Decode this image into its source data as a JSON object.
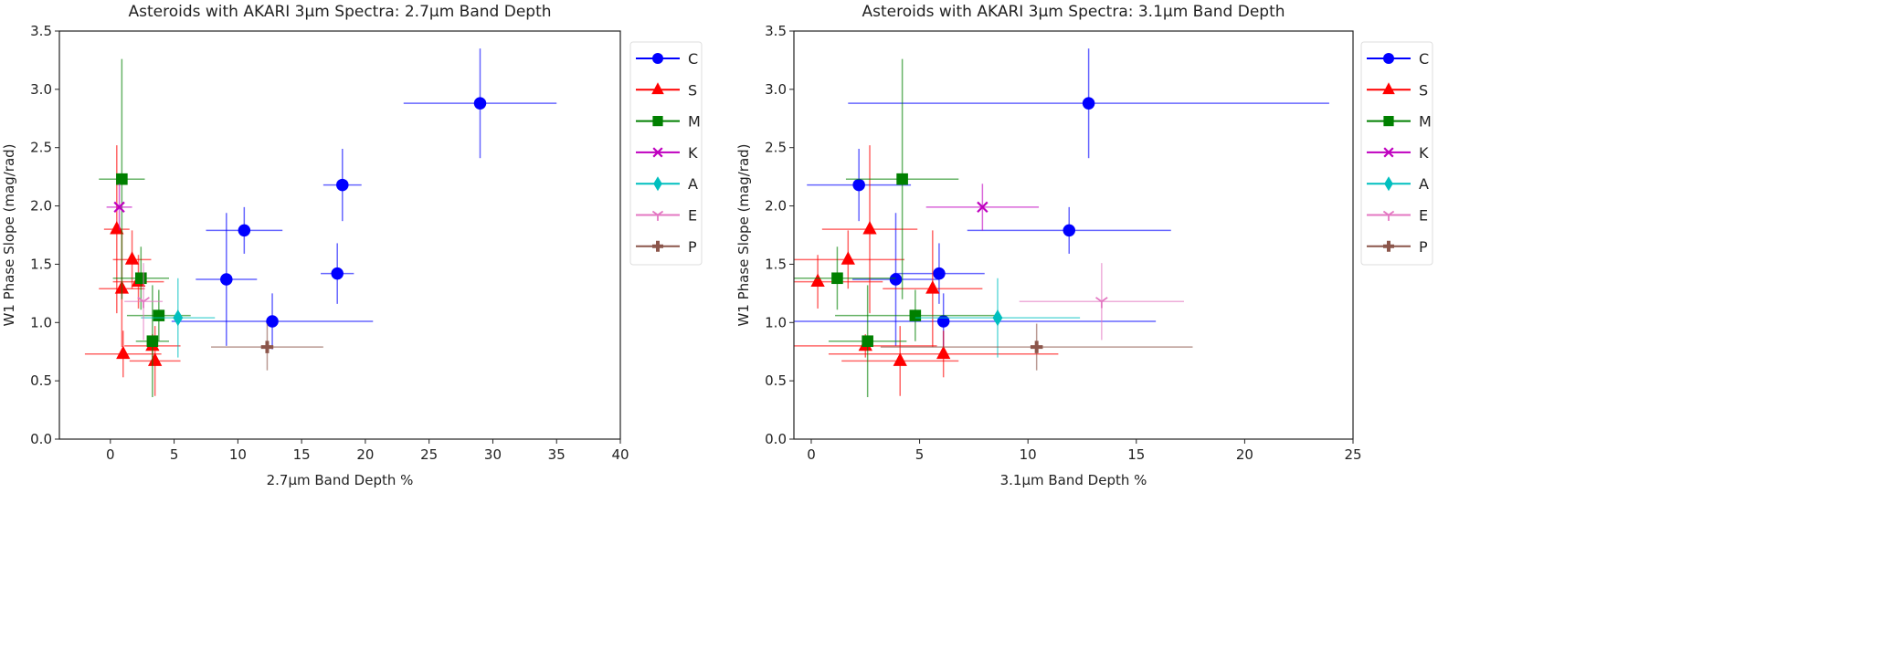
{
  "chart_data": [
    {
      "type": "scatter",
      "title": "Asteroids with AKARI 3μm Spectra: 2.7μm Band Depth",
      "xlabel": "2.7μm Band Depth %",
      "ylabel": "W1 Phase Slope (mag/rad)",
      "xlim": [
        -4,
        40
      ],
      "ylim": [
        0,
        3.5
      ],
      "xticks": [
        "0",
        "5",
        "10",
        "15",
        "20",
        "25",
        "30",
        "35",
        "40"
      ],
      "yticks": [
        "0.0",
        "0.5",
        "1.0",
        "1.5",
        "2.0",
        "2.5",
        "3.0",
        "3.5"
      ],
      "legend_position": "outside-right-top",
      "series": [
        {
          "name": "C",
          "color": "#0000ff",
          "marker": "circle",
          "points": [
            {
              "x": 29.0,
              "y": 2.88,
              "xerr": 6.0,
              "yerr": 0.47
            },
            {
              "x": 18.2,
              "y": 2.18,
              "xerr": 1.5,
              "yerr": 0.31
            },
            {
              "x": 10.5,
              "y": 1.79,
              "xerr": 3.0,
              "yerr": 0.2
            },
            {
              "x": 17.8,
              "y": 1.42,
              "xerr": 1.3,
              "yerr": 0.26
            },
            {
              "x": 9.1,
              "y": 1.37,
              "xerr": 2.4,
              "yerr": 0.57
            },
            {
              "x": 12.7,
              "y": 1.01,
              "xerr": 7.9,
              "yerr": 0.24
            }
          ]
        },
        {
          "name": "S",
          "color": "#ff0000",
          "marker": "triangle",
          "points": [
            {
              "x": 0.5,
              "y": 1.8,
              "xerr": 1.0,
              "yerr": 0.72
            },
            {
              "x": 1.7,
              "y": 1.54,
              "xerr": 1.5,
              "yerr": 0.25
            },
            {
              "x": 2.2,
              "y": 1.35,
              "xerr": 2.0,
              "yerr": 0.23
            },
            {
              "x": 0.9,
              "y": 1.29,
              "xerr": 1.8,
              "yerr": 0.5
            },
            {
              "x": 3.3,
              "y": 0.8,
              "xerr": 2.2,
              "yerr": 0.1
            },
            {
              "x": 1.0,
              "y": 0.73,
              "xerr": 3.0,
              "yerr": 0.2
            },
            {
              "x": 3.5,
              "y": 0.67,
              "xerr": 2.0,
              "yerr": 0.3
            }
          ]
        },
        {
          "name": "M",
          "color": "#008000",
          "marker": "square",
          "points": [
            {
              "x": 0.9,
              "y": 2.23,
              "xerr": 1.8,
              "yerr": 1.03
            },
            {
              "x": 2.4,
              "y": 1.38,
              "xerr": 2.2,
              "yerr": 0.27
            },
            {
              "x": 3.8,
              "y": 1.06,
              "xerr": 2.5,
              "yerr": 0.22
            },
            {
              "x": 3.3,
              "y": 0.84,
              "xerr": 1.3,
              "yerr": 0.48
            }
          ]
        },
        {
          "name": "K",
          "color": "#bf00bf",
          "marker": "x",
          "points": [
            {
              "x": 0.7,
              "y": 1.99,
              "xerr": 1.0,
              "yerr": 0.2
            }
          ]
        },
        {
          "name": "A",
          "color": "#00bfbf",
          "marker": "diamond",
          "points": [
            {
              "x": 5.3,
              "y": 1.04,
              "xerr": 2.9,
              "yerr": 0.34
            }
          ]
        },
        {
          "name": "E",
          "color": "#e377c2",
          "marker": "tri",
          "points": [
            {
              "x": 2.6,
              "y": 1.18,
              "xerr": 1.5,
              "yerr": 0.33
            }
          ]
        },
        {
          "name": "P",
          "color": "#8c564b",
          "marker": "plus",
          "points": [
            {
              "x": 12.3,
              "y": 0.79,
              "xerr": 4.4,
              "yerr": 0.2
            }
          ]
        }
      ]
    },
    {
      "type": "scatter",
      "title": "Asteroids with AKARI 3μm Spectra: 3.1μm Band Depth",
      "xlabel": "3.1μm Band Depth %",
      "ylabel": "W1 Phase Slope (mag/rad)",
      "xlim": [
        -0.8,
        25
      ],
      "ylim": [
        0,
        3.5
      ],
      "xticks": [
        "0",
        "5",
        "10",
        "15",
        "20",
        "25"
      ],
      "yticks": [
        "0.0",
        "0.5",
        "1.0",
        "1.5",
        "2.0",
        "2.5",
        "3.0",
        "3.5"
      ],
      "legend_position": "outside-right-top",
      "series": [
        {
          "name": "C",
          "color": "#0000ff",
          "marker": "circle",
          "points": [
            {
              "x": 12.8,
              "y": 2.88,
              "xerr": 11.1,
              "yerr": 0.47
            },
            {
              "x": 2.2,
              "y": 2.18,
              "xerr": 2.4,
              "yerr": 0.31
            },
            {
              "x": 11.9,
              "y": 1.79,
              "xerr": 4.7,
              "yerr": 0.2
            },
            {
              "x": 5.9,
              "y": 1.42,
              "xerr": 2.1,
              "yerr": 0.26
            },
            {
              "x": 3.9,
              "y": 1.37,
              "xerr": 2.0,
              "yerr": 0.57
            },
            {
              "x": 6.1,
              "y": 1.01,
              "xerr": 9.8,
              "yerr": 0.24
            }
          ]
        },
        {
          "name": "S",
          "color": "#ff0000",
          "marker": "triangle",
          "points": [
            {
              "x": 2.7,
              "y": 1.8,
              "xerr": 2.2,
              "yerr": 0.72
            },
            {
              "x": 1.7,
              "y": 1.54,
              "xerr": 2.6,
              "yerr": 0.25
            },
            {
              "x": 0.3,
              "y": 1.35,
              "xerr": 3.0,
              "yerr": 0.23
            },
            {
              "x": 5.6,
              "y": 1.29,
              "xerr": 2.3,
              "yerr": 0.5
            },
            {
              "x": 2.5,
              "y": 0.8,
              "xerr": 3.3,
              "yerr": 0.1
            },
            {
              "x": 6.1,
              "y": 0.73,
              "xerr": 5.3,
              "yerr": 0.2
            },
            {
              "x": 4.1,
              "y": 0.67,
              "xerr": 2.7,
              "yerr": 0.3
            }
          ]
        },
        {
          "name": "M",
          "color": "#008000",
          "marker": "square",
          "points": [
            {
              "x": 4.2,
              "y": 2.23,
              "xerr": 2.6,
              "yerr": 1.03
            },
            {
              "x": 1.2,
              "y": 1.38,
              "xerr": 2.7,
              "yerr": 0.27
            },
            {
              "x": 4.8,
              "y": 1.06,
              "xerr": 3.7,
              "yerr": 0.22
            },
            {
              "x": 2.6,
              "y": 0.84,
              "xerr": 1.8,
              "yerr": 0.48
            }
          ]
        },
        {
          "name": "K",
          "color": "#bf00bf",
          "marker": "x",
          "points": [
            {
              "x": 7.9,
              "y": 1.99,
              "xerr": 2.6,
              "yerr": 0.2
            }
          ]
        },
        {
          "name": "A",
          "color": "#00bfbf",
          "marker": "diamond",
          "points": [
            {
              "x": 8.6,
              "y": 1.04,
              "xerr": 3.8,
              "yerr": 0.34
            }
          ]
        },
        {
          "name": "E",
          "color": "#e377c2",
          "marker": "tri",
          "points": [
            {
              "x": 13.4,
              "y": 1.18,
              "xerr": 3.8,
              "yerr": 0.33
            }
          ]
        },
        {
          "name": "P",
          "color": "#8c564b",
          "marker": "plus",
          "points": [
            {
              "x": 10.4,
              "y": 0.79,
              "xerr": 7.2,
              "yerr": 0.2
            }
          ]
        }
      ]
    }
  ]
}
